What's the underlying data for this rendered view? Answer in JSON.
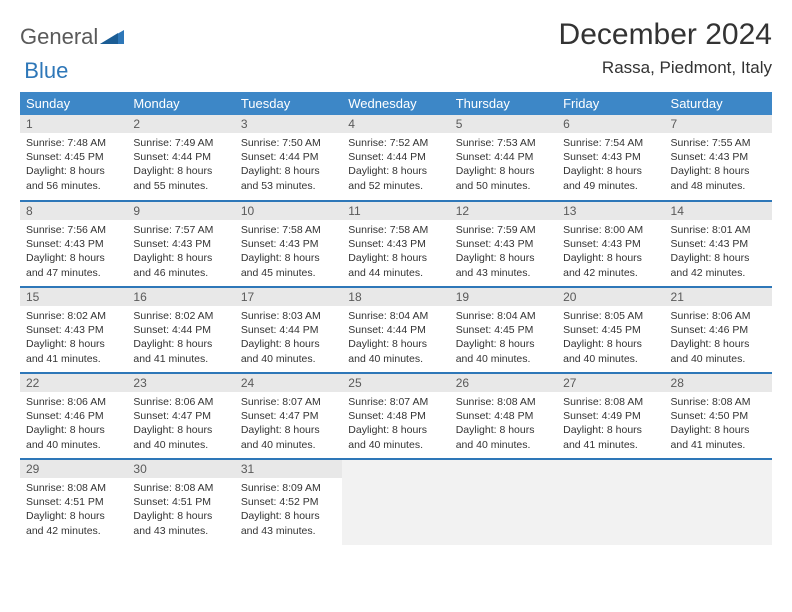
{
  "brand": {
    "word1": "General",
    "word2": "Blue"
  },
  "title": "December 2024",
  "location": "Rassa, Piedmont, Italy",
  "colors": {
    "header_bg": "#3d87c7",
    "rule": "#2e77b8",
    "daynum_bg": "#e8e8e8",
    "blank_bg": "#f2f2f2",
    "logo_blue": "#2e77b8",
    "text": "#333333"
  },
  "dow": [
    "Sunday",
    "Monday",
    "Tuesday",
    "Wednesday",
    "Thursday",
    "Friday",
    "Saturday"
  ],
  "days": [
    {
      "n": "1",
      "sr": "7:48 AM",
      "ss": "4:45 PM",
      "dh": "8",
      "dm": "56"
    },
    {
      "n": "2",
      "sr": "7:49 AM",
      "ss": "4:44 PM",
      "dh": "8",
      "dm": "55"
    },
    {
      "n": "3",
      "sr": "7:50 AM",
      "ss": "4:44 PM",
      "dh": "8",
      "dm": "53"
    },
    {
      "n": "4",
      "sr": "7:52 AM",
      "ss": "4:44 PM",
      "dh": "8",
      "dm": "52"
    },
    {
      "n": "5",
      "sr": "7:53 AM",
      "ss": "4:44 PM",
      "dh": "8",
      "dm": "50"
    },
    {
      "n": "6",
      "sr": "7:54 AM",
      "ss": "4:43 PM",
      "dh": "8",
      "dm": "49"
    },
    {
      "n": "7",
      "sr": "7:55 AM",
      "ss": "4:43 PM",
      "dh": "8",
      "dm": "48"
    },
    {
      "n": "8",
      "sr": "7:56 AM",
      "ss": "4:43 PM",
      "dh": "8",
      "dm": "47"
    },
    {
      "n": "9",
      "sr": "7:57 AM",
      "ss": "4:43 PM",
      "dh": "8",
      "dm": "46"
    },
    {
      "n": "10",
      "sr": "7:58 AM",
      "ss": "4:43 PM",
      "dh": "8",
      "dm": "45"
    },
    {
      "n": "11",
      "sr": "7:58 AM",
      "ss": "4:43 PM",
      "dh": "8",
      "dm": "44"
    },
    {
      "n": "12",
      "sr": "7:59 AM",
      "ss": "4:43 PM",
      "dh": "8",
      "dm": "43"
    },
    {
      "n": "13",
      "sr": "8:00 AM",
      "ss": "4:43 PM",
      "dh": "8",
      "dm": "42"
    },
    {
      "n": "14",
      "sr": "8:01 AM",
      "ss": "4:43 PM",
      "dh": "8",
      "dm": "42"
    },
    {
      "n": "15",
      "sr": "8:02 AM",
      "ss": "4:43 PM",
      "dh": "8",
      "dm": "41"
    },
    {
      "n": "16",
      "sr": "8:02 AM",
      "ss": "4:44 PM",
      "dh": "8",
      "dm": "41"
    },
    {
      "n": "17",
      "sr": "8:03 AM",
      "ss": "4:44 PM",
      "dh": "8",
      "dm": "40"
    },
    {
      "n": "18",
      "sr": "8:04 AM",
      "ss": "4:44 PM",
      "dh": "8",
      "dm": "40"
    },
    {
      "n": "19",
      "sr": "8:04 AM",
      "ss": "4:45 PM",
      "dh": "8",
      "dm": "40"
    },
    {
      "n": "20",
      "sr": "8:05 AM",
      "ss": "4:45 PM",
      "dh": "8",
      "dm": "40"
    },
    {
      "n": "21",
      "sr": "8:06 AM",
      "ss": "4:46 PM",
      "dh": "8",
      "dm": "40"
    },
    {
      "n": "22",
      "sr": "8:06 AM",
      "ss": "4:46 PM",
      "dh": "8",
      "dm": "40"
    },
    {
      "n": "23",
      "sr": "8:06 AM",
      "ss": "4:47 PM",
      "dh": "8",
      "dm": "40"
    },
    {
      "n": "24",
      "sr": "8:07 AM",
      "ss": "4:47 PM",
      "dh": "8",
      "dm": "40"
    },
    {
      "n": "25",
      "sr": "8:07 AM",
      "ss": "4:48 PM",
      "dh": "8",
      "dm": "40"
    },
    {
      "n": "26",
      "sr": "8:08 AM",
      "ss": "4:48 PM",
      "dh": "8",
      "dm": "40"
    },
    {
      "n": "27",
      "sr": "8:08 AM",
      "ss": "4:49 PM",
      "dh": "8",
      "dm": "41"
    },
    {
      "n": "28",
      "sr": "8:08 AM",
      "ss": "4:50 PM",
      "dh": "8",
      "dm": "41"
    },
    {
      "n": "29",
      "sr": "8:08 AM",
      "ss": "4:51 PM",
      "dh": "8",
      "dm": "42"
    },
    {
      "n": "30",
      "sr": "8:08 AM",
      "ss": "4:51 PM",
      "dh": "8",
      "dm": "43"
    },
    {
      "n": "31",
      "sr": "8:09 AM",
      "ss": "4:52 PM",
      "dh": "8",
      "dm": "43"
    }
  ],
  "labels": {
    "sunrise": "Sunrise:",
    "sunset": "Sunset:",
    "daylight_prefix": "Daylight:",
    "hours_word": "hours",
    "and_word": "and",
    "minutes_word": "minutes."
  }
}
